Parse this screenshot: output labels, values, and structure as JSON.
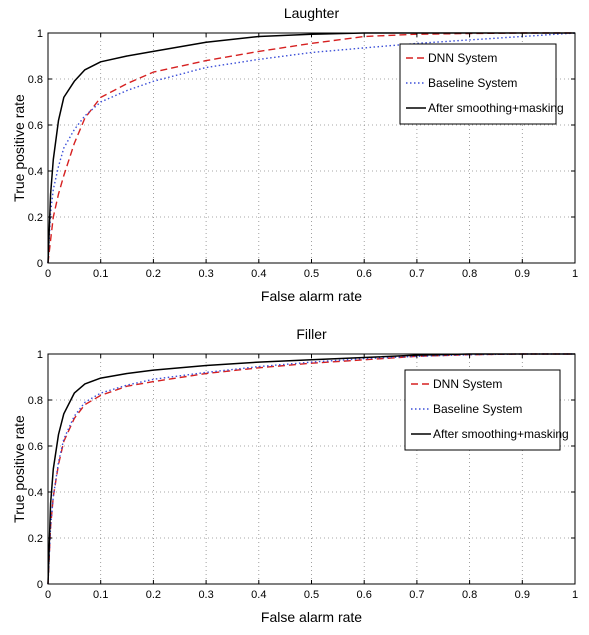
{
  "chart_data": [
    {
      "type": "line",
      "title": "Laughter",
      "xlabel": "False alarm rate",
      "ylabel": "True positive rate",
      "xlim": [
        0,
        1
      ],
      "ylim": [
        0,
        1
      ],
      "grid": true,
      "legend_position": "top-right",
      "xticks": [
        "0",
        "0.1",
        "0.2",
        "0.3",
        "0.4",
        "0.5",
        "0.6",
        "0.7",
        "0.8",
        "0.9",
        "1"
      ],
      "yticks": [
        "0",
        "0.2",
        "0.4",
        "0.6",
        "0.8",
        "1"
      ],
      "series": [
        {
          "name": "DNN System",
          "color": "#d62020",
          "dash": "dashed",
          "x": [
            0,
            0.005,
            0.01,
            0.02,
            0.03,
            0.05,
            0.07,
            0.1,
            0.15,
            0.2,
            0.3,
            0.4,
            0.5,
            0.6,
            0.7,
            0.8,
            0.9,
            1
          ],
          "y": [
            0,
            0.1,
            0.2,
            0.3,
            0.38,
            0.52,
            0.63,
            0.72,
            0.78,
            0.83,
            0.88,
            0.92,
            0.955,
            0.985,
            0.995,
            0.998,
            1,
            1
          ]
        },
        {
          "name": "Baseline System",
          "color": "#3b4fd8",
          "dash": "dotted",
          "x": [
            0,
            0.005,
            0.01,
            0.02,
            0.03,
            0.05,
            0.07,
            0.1,
            0.15,
            0.2,
            0.3,
            0.4,
            0.5,
            0.6,
            0.7,
            0.8,
            0.9,
            1
          ],
          "y": [
            0,
            0.22,
            0.32,
            0.42,
            0.5,
            0.58,
            0.64,
            0.7,
            0.75,
            0.79,
            0.85,
            0.885,
            0.915,
            0.935,
            0.955,
            0.97,
            0.985,
            1
          ]
        },
        {
          "name": "After smoothing+masking",
          "color": "#000000",
          "dash": "solid",
          "x": [
            0,
            0.005,
            0.01,
            0.02,
            0.03,
            0.05,
            0.07,
            0.1,
            0.15,
            0.2,
            0.3,
            0.4,
            0.5,
            0.6,
            0.7,
            0.8,
            0.9,
            1
          ],
          "y": [
            0,
            0.3,
            0.45,
            0.62,
            0.72,
            0.79,
            0.84,
            0.875,
            0.9,
            0.92,
            0.96,
            0.985,
            0.995,
            1,
            1,
            1,
            1,
            1
          ]
        }
      ]
    },
    {
      "type": "line",
      "title": "Filler",
      "xlabel": "False alarm rate",
      "ylabel": "True positive rate",
      "xlim": [
        0,
        1
      ],
      "ylim": [
        0,
        1
      ],
      "grid": true,
      "legend_position": "right",
      "xticks": [
        "0",
        "0.1",
        "0.2",
        "0.3",
        "0.4",
        "0.5",
        "0.6",
        "0.7",
        "0.8",
        "0.9",
        "1"
      ],
      "yticks": [
        "0",
        "0.2",
        "0.4",
        "0.6",
        "0.8",
        "1"
      ],
      "series": [
        {
          "name": "DNN System",
          "color": "#d62020",
          "dash": "dashed",
          "x": [
            0,
            0.005,
            0.01,
            0.02,
            0.03,
            0.05,
            0.07,
            0.1,
            0.15,
            0.2,
            0.3,
            0.4,
            0.5,
            0.6,
            0.7,
            0.8,
            0.9,
            1
          ],
          "y": [
            0,
            0.25,
            0.38,
            0.52,
            0.62,
            0.72,
            0.78,
            0.82,
            0.86,
            0.88,
            0.915,
            0.94,
            0.96,
            0.975,
            0.99,
            0.997,
            1,
            1
          ]
        },
        {
          "name": "Baseline System",
          "color": "#3b4fd8",
          "dash": "dotted",
          "x": [
            0,
            0.005,
            0.01,
            0.02,
            0.03,
            0.05,
            0.07,
            0.1,
            0.15,
            0.2,
            0.3,
            0.4,
            0.5,
            0.6,
            0.7,
            0.8,
            0.9,
            1
          ],
          "y": [
            0,
            0.25,
            0.38,
            0.53,
            0.63,
            0.73,
            0.79,
            0.83,
            0.865,
            0.89,
            0.92,
            0.945,
            0.965,
            0.98,
            0.99,
            0.997,
            1,
            1
          ]
        },
        {
          "name": "After smoothing+masking",
          "color": "#000000",
          "dash": "solid",
          "x": [
            0,
            0.005,
            0.01,
            0.02,
            0.03,
            0.05,
            0.07,
            0.1,
            0.15,
            0.2,
            0.3,
            0.4,
            0.5,
            0.6,
            0.7,
            0.8,
            0.9,
            1
          ],
          "y": [
            0,
            0.35,
            0.5,
            0.65,
            0.74,
            0.83,
            0.87,
            0.895,
            0.915,
            0.93,
            0.95,
            0.965,
            0.975,
            0.985,
            0.995,
            1,
            1,
            1
          ]
        }
      ]
    }
  ]
}
